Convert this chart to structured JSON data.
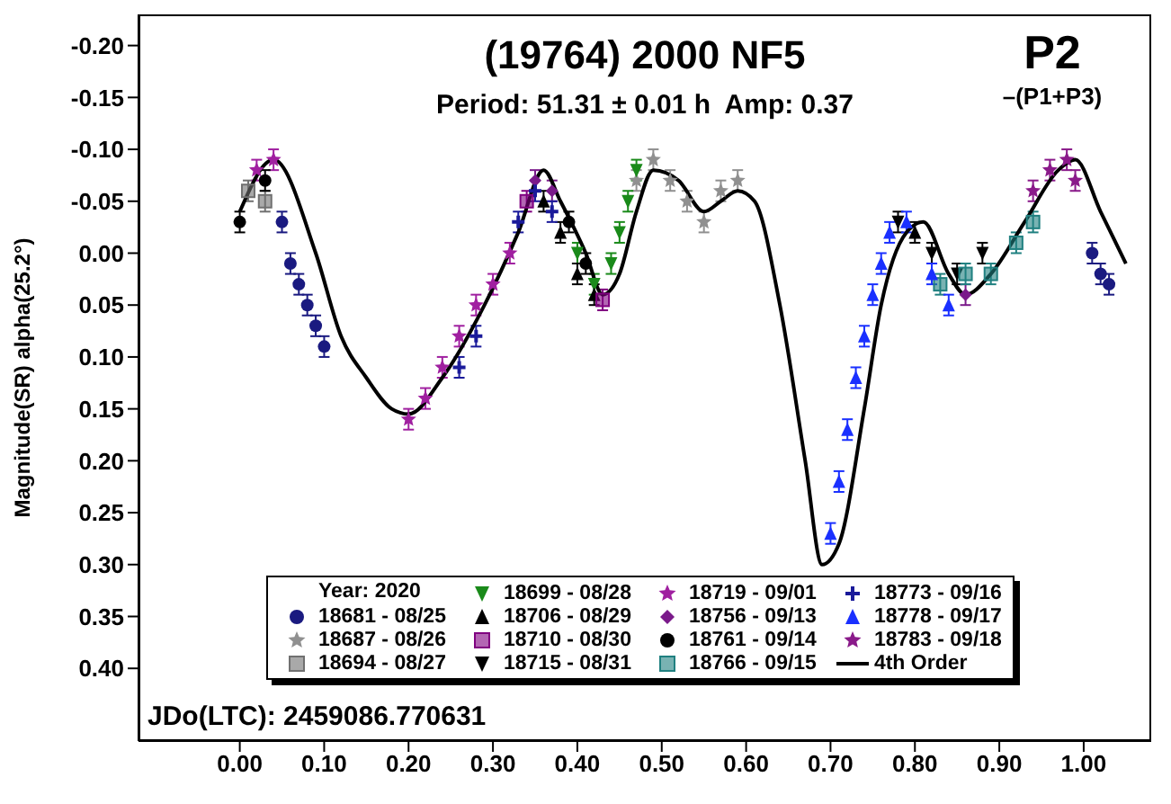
{
  "chart_data": {
    "type": "scatter",
    "title": "(19764) 2000 NF5",
    "subtitle": "Period: 51.31 ± 0.01 h  Amp: 0.37",
    "ylabel": "Magnitude(SR) alpha(25.2°)",
    "legend_title": "Year: 2020",
    "legend": "bottom",
    "annotations": [
      "P2",
      "–(P1+P3)",
      "JDo(LTC): 2459086.770631"
    ],
    "xlim": [
      -0.12,
      1.08
    ],
    "xticks": [
      {
        "value": 0,
        "label": "0.00"
      },
      {
        "value": 0.1,
        "label": "0.10"
      },
      {
        "value": 0.2,
        "label": "0.20"
      },
      {
        "value": 0.3,
        "label": "0.30"
      },
      {
        "value": 0.4,
        "label": "0.40"
      },
      {
        "value": 0.5,
        "label": "0.50"
      },
      {
        "value": 0.6,
        "label": "0.60"
      },
      {
        "value": 0.7,
        "label": "0.70"
      },
      {
        "value": 0.8,
        "label": "0.80"
      },
      {
        "value": 0.9,
        "label": "0.90"
      },
      {
        "value": 1,
        "label": "1.00"
      }
    ],
    "ylim": [
      0.47,
      -0.23
    ],
    "yticks": [
      {
        "value": -0.2,
        "label": "-0.20"
      },
      {
        "value": -0.15,
        "label": "-0.15"
      },
      {
        "value": -0.1,
        "label": "-0.10"
      },
      {
        "value": -0.05,
        "label": "-0.05"
      },
      {
        "value": 0,
        "label": "0.00"
      },
      {
        "value": 0.05,
        "label": "0.05"
      },
      {
        "value": 0.1,
        "label": "0.10"
      },
      {
        "value": 0.15,
        "label": "0.15"
      },
      {
        "value": 0.2,
        "label": "0.20"
      },
      {
        "value": 0.25,
        "label": "0.25"
      },
      {
        "value": 0.3,
        "label": "0.30"
      },
      {
        "value": 0.35,
        "label": "0.35"
      },
      {
        "value": 0.4,
        "label": "0.40"
      }
    ],
    "grid": false,
    "series": [
      {
        "name": "18681 - 08/25",
        "color": "#1a1a80",
        "marker": "circle",
        "x": [
          0.05,
          0.06,
          0.07,
          0.08,
          0.09,
          0.1,
          1.01,
          1.02,
          1.03
        ],
        "values": [
          -0.03,
          0.01,
          0.03,
          0.05,
          0.07,
          0.09,
          0,
          0.02,
          0.03
        ],
        "errors": [
          0.01,
          0.01,
          0.01,
          0.01,
          0.01,
          0.01,
          0.01,
          0.01,
          0.01
        ]
      },
      {
        "name": "18687 - 08/26",
        "color": "#909090",
        "marker": "star",
        "x": [
          0.47,
          0.49,
          0.51,
          0.53,
          0.55,
          0.57,
          0.59
        ],
        "values": [
          -0.07,
          -0.09,
          -0.07,
          -0.05,
          -0.03,
          -0.06,
          -0.07
        ],
        "errors": [
          0.01,
          0.01,
          0.01,
          0.01,
          0.01,
          0.01,
          0.01
        ]
      },
      {
        "name": "18694 - 08/27",
        "color": "#707070",
        "marker": "square",
        "x": [
          0.01,
          0.03
        ],
        "values": [
          -0.06,
          -0.05
        ],
        "errors": [
          0.01,
          0.01
        ]
      },
      {
        "name": "18699 - 08/28",
        "color": "#1a8a1a",
        "marker": "triangle-down",
        "x": [
          0.4,
          0.42,
          0.44,
          0.45,
          0.46,
          0.47
        ],
        "values": [
          0,
          0.03,
          0.01,
          -0.02,
          -0.05,
          -0.08
        ],
        "errors": [
          0.01,
          0.01,
          0.01,
          0.01,
          0.01,
          0.01
        ]
      },
      {
        "name": "18706 - 08/29",
        "color": "#000000",
        "marker": "triangle",
        "x": [
          0.36,
          0.38,
          0.4,
          0.42,
          0.8
        ],
        "values": [
          -0.05,
          -0.02,
          0.02,
          0.04,
          -0.02
        ],
        "errors": [
          0.01,
          0.01,
          0.01,
          0.01,
          0.01
        ]
      },
      {
        "name": "18710 - 08/30",
        "color": "#800080",
        "marker": "square",
        "x": [
          0.34,
          0.43
        ],
        "values": [
          -0.05,
          0.045
        ],
        "errors": [
          0.01,
          0.01
        ]
      },
      {
        "name": "18715 - 08/31",
        "color": "#000000",
        "marker": "triangle-down",
        "x": [
          0.78,
          0.82,
          0.85,
          0.88
        ],
        "values": [
          -0.03,
          0,
          0.02,
          0
        ],
        "errors": [
          0.01,
          0.01,
          0.01,
          0.01
        ]
      },
      {
        "name": "18719 - 09/01",
        "color": "#a020a0",
        "marker": "star",
        "x": [
          0.02,
          0.04,
          0.2,
          0.22,
          0.24,
          0.26,
          0.28,
          0.3,
          0.32
        ],
        "values": [
          -0.08,
          -0.09,
          0.16,
          0.14,
          0.11,
          0.08,
          0.05,
          0.03,
          0
        ],
        "errors": [
          0.01,
          0.01,
          0.01,
          0.01,
          0.01,
          0.01,
          0.01,
          0.01,
          0.01
        ]
      },
      {
        "name": "18756 - 09/13",
        "color": "#7a1a8a",
        "marker": "diamond",
        "x": [
          0.35,
          0.37,
          0.86
        ],
        "values": [
          -0.07,
          -0.06,
          0.04
        ],
        "errors": [
          0.01,
          0.01,
          0.01
        ]
      },
      {
        "name": "18761 - 09/14",
        "color": "#000000",
        "marker": "circle",
        "x": [
          0,
          0.03,
          0.39,
          0.41
        ],
        "values": [
          -0.03,
          -0.07,
          -0.03,
          0.01
        ],
        "errors": [
          0.01,
          0.01,
          0.01,
          0.01
        ]
      },
      {
        "name": "18766 - 09/15",
        "color": "#208080",
        "marker": "square",
        "x": [
          0.83,
          0.86,
          0.89,
          0.92,
          0.94
        ],
        "values": [
          0.03,
          0.02,
          0.02,
          -0.01,
          -0.03
        ],
        "errors": [
          0.01,
          0.01,
          0.01,
          0.01,
          0.01
        ]
      },
      {
        "name": "18773 - 09/16",
        "color": "#1a1a9a",
        "marker": "cross",
        "x": [
          0.26,
          0.28,
          0.33,
          0.35,
          0.37
        ],
        "values": [
          0.11,
          0.08,
          -0.03,
          -0.06,
          -0.04
        ],
        "errors": [
          0.01,
          0.01,
          0.01,
          0.01,
          0.01
        ]
      },
      {
        "name": "18778 - 09/17",
        "color": "#1a30ff",
        "marker": "triangle",
        "x": [
          0.7,
          0.71,
          0.72,
          0.73,
          0.74,
          0.75,
          0.76,
          0.77,
          0.79,
          0.82,
          0.84
        ],
        "values": [
          0.27,
          0.22,
          0.17,
          0.12,
          0.08,
          0.04,
          0.01,
          -0.02,
          -0.03,
          0.02,
          0.05
        ],
        "errors": [
          0.01,
          0.01,
          0.01,
          0.01,
          0.01,
          0.01,
          0.01,
          0.01,
          0.01,
          0.01,
          0.01
        ]
      },
      {
        "name": "18783 - 09/18",
        "color": "#8a1a8a",
        "marker": "star",
        "x": [
          0.94,
          0.96,
          0.98,
          0.99
        ],
        "values": [
          -0.06,
          -0.08,
          -0.09,
          -0.07
        ],
        "errors": [
          0.01,
          0.01,
          0.01,
          0.01
        ]
      },
      {
        "name": "4th Order",
        "type": "line",
        "color": "#000000",
        "marker": "none",
        "line_style": "solid",
        "x": [
          0,
          0.04,
          0.09,
          0.12,
          0.15,
          0.18,
          0.2,
          0.24,
          0.29,
          0.33,
          0.36,
          0.38,
          0.41,
          0.43,
          0.45,
          0.47,
          0.49,
          0.52,
          0.55,
          0.57,
          0.59,
          0.61,
          0.64,
          0.67,
          0.69,
          0.71,
          0.74,
          0.76,
          0.79,
          0.81,
          0.84,
          0.86,
          0.89,
          0.93,
          0.97,
          0.99,
          1.02,
          1.05
        ],
        "values": [
          -0.04,
          -0.09,
          0,
          0.08,
          0.12,
          0.15,
          0.155,
          0.12,
          0.05,
          -0.02,
          -0.08,
          -0.05,
          0,
          0.04,
          0.02,
          -0.04,
          -0.08,
          -0.07,
          -0.04,
          -0.05,
          -0.06,
          -0.05,
          0.05,
          0.2,
          0.3,
          0.28,
          0.15,
          0.05,
          -0.02,
          -0.03,
          0.02,
          0.04,
          0.02,
          -0.03,
          -0.08,
          -0.09,
          -0.04,
          0.01
        ]
      }
    ]
  }
}
